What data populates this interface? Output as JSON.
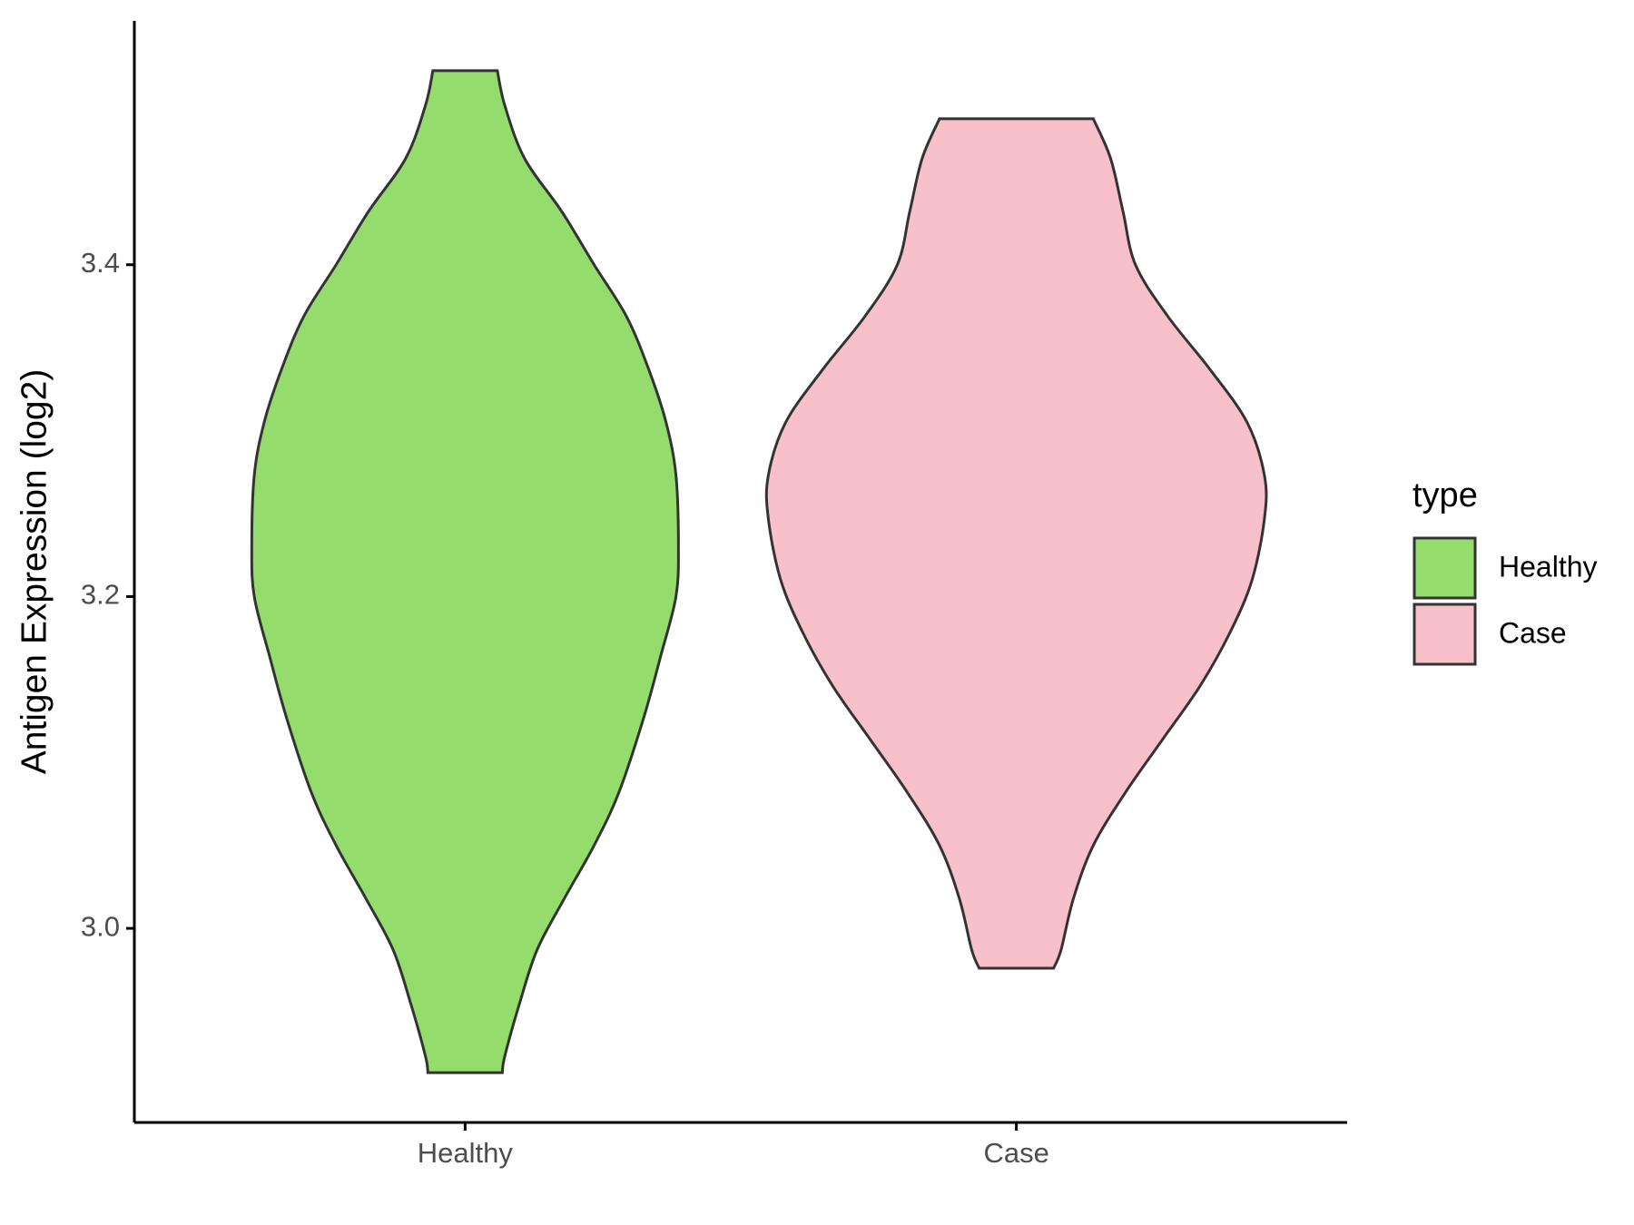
{
  "chart_data": {
    "type": "violin",
    "y_label": "Antigen Expression (log2)",
    "categories": [
      "Healthy",
      "Case"
    ],
    "legend_title": "type",
    "legend": "right",
    "ylim": [
      2.883,
      3.547
    ],
    "yticks": [
      {
        "value": 3,
        "label": "3.0"
      },
      3.2,
      3.4
    ],
    "series": [
      {
        "name": "Healthy",
        "color": "#94dc6b",
        "y": [
          2.913,
          2.923,
          2.955,
          2.987,
          3.018,
          3.05,
          3.082,
          3.127,
          3.165,
          3.2,
          3.23,
          3.273,
          3.305,
          3.337,
          3.369,
          3.4,
          3.432,
          3.464,
          3.496,
          3.517
        ],
        "density": [
          0.15,
          0.16,
          0.22,
          0.29,
          0.4,
          0.52,
          0.62,
          0.72,
          0.79,
          0.85,
          0.86,
          0.85,
          0.81,
          0.74,
          0.65,
          0.52,
          0.39,
          0.24,
          0.16,
          0.13
        ]
      },
      {
        "name": "Case",
        "color": "#f7c0cb",
        "y": [
          2.976,
          2.987,
          3.018,
          3.05,
          3.082,
          3.114,
          3.146,
          3.178,
          3.21,
          3.247,
          3.273,
          3.305,
          3.337,
          3.369,
          3.4,
          3.432,
          3.464,
          3.488
        ],
        "density": [
          0.15,
          0.18,
          0.23,
          0.31,
          0.44,
          0.59,
          0.74,
          0.86,
          0.95,
          1.0,
          1.0,
          0.93,
          0.78,
          0.61,
          0.48,
          0.43,
          0.38,
          0.31
        ]
      }
    ]
  }
}
